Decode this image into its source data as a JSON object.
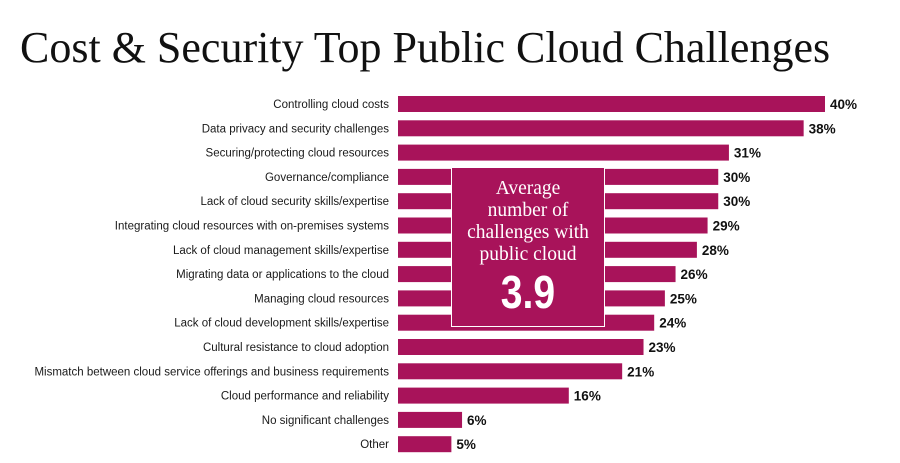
{
  "chart_data": {
    "type": "bar",
    "orientation": "horizontal",
    "title": "Cost & Security Top Public Cloud Challenges",
    "categories": [
      "Controlling cloud costs",
      "Data privacy and security challenges",
      "Securing/protecting cloud resources",
      "Governance/compliance",
      "Lack of cloud security skills/expertise",
      "Integrating cloud resources with on-premises systems",
      "Lack of cloud management skills/expertise",
      "Migrating data or applications to the cloud",
      "Managing cloud resources",
      "Lack of cloud development skills/expertise",
      "Cultural resistance to cloud adoption",
      "Mismatch between cloud service offerings and business requirements",
      "Cloud performance and reliability",
      "No significant challenges",
      "Other"
    ],
    "values": [
      40,
      38,
      31,
      30,
      30,
      29,
      28,
      26,
      25,
      24,
      23,
      21,
      16,
      6,
      5
    ],
    "value_labels": [
      "40%",
      "38%",
      "31%",
      "30%",
      "30%",
      "29%",
      "28%",
      "26%",
      "25%",
      "24%",
      "23%",
      "21%",
      "16%",
      "6%",
      "5%"
    ],
    "bar_color": "#a8135a",
    "xlim": [
      0,
      40
    ],
    "grid": false,
    "annotation": {
      "text_lines": [
        "Average",
        "number of",
        "challenges with",
        "public cloud"
      ],
      "value": "3.9",
      "background": "#a8135a",
      "text_color": "#ffffff"
    }
  }
}
